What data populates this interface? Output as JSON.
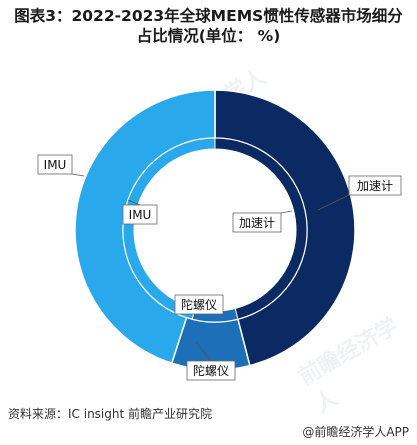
{
  "title_line1": "图表3：2022-2023年全球MEMS惯性传感器市场细分",
  "title_line2": "占比情况(单位：  %)",
  "source": "资料来源：IC insight 前瞻产业研究院",
  "brand": "@前瞻经济学人APP",
  "watermark": "前瞻经济学人",
  "chart_data": {
    "type": "donut",
    "title": "图表3：2022-2023年全球MEMS惯性传感器市场细分占比情况(单位：  %)",
    "colors": {
      "加速计": "#0b2a63",
      "IMU": "#29a9eb",
      "陀螺仪": "#1d6fb8"
    },
    "rings": [
      {
        "ring": "outer",
        "slices": [
          {
            "label": "加速计",
            "value": 46
          },
          {
            "label": "陀螺仪",
            "value": 9
          },
          {
            "label": "IMU",
            "value": 45
          }
        ]
      },
      {
        "ring": "inner",
        "slices": [
          {
            "label": "加速计",
            "value": 46
          },
          {
            "label": "陀螺仪",
            "value": 8
          },
          {
            "label": "IMU",
            "value": 46
          }
        ]
      }
    ],
    "callouts": [
      "加速计",
      "IMU",
      "加速计",
      "IMU",
      "陀螺仪",
      "陀螺仪"
    ]
  }
}
